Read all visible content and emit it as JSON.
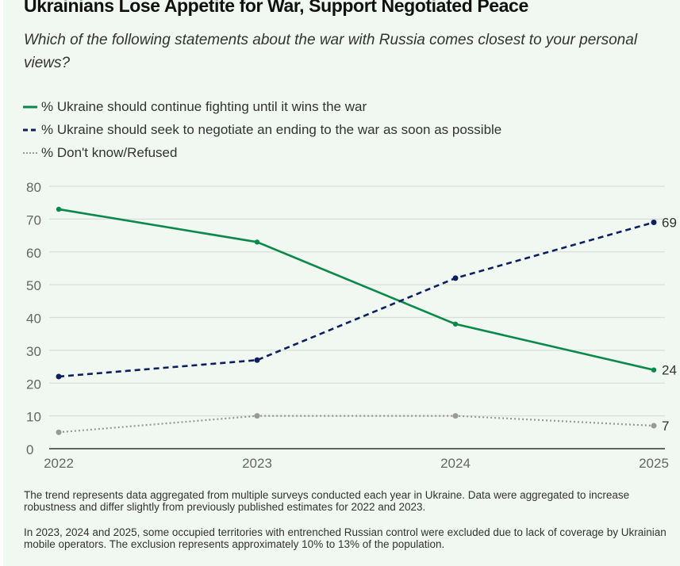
{
  "title": "Ukrainians Lose Appetite for War, Support Negotiated Peace",
  "subtitle": "Which of the following statements about the war with Russia comes closest to your personal views?",
  "colors": {
    "background": "#f1f7f1",
    "fight": "#0a8a4a",
    "negotiate": "#0c2060",
    "dontknow": "#999999",
    "grid": "#d9ded9",
    "axis": "#333333"
  },
  "notes": [
    "The trend represents data aggregated from multiple surveys conducted each year in Ukraine. Data were aggregated to increase robustness and differ slightly from previously published estimates for 2022 and 2023.",
    "In 2023, 2024 and 2025, some occupied territories with entrenched Russian control were excluded due to lack of coverage by Ukrainian mobile operators. The exclusion represents approximately 10% to 13% of the population."
  ],
  "chart_data": {
    "type": "line",
    "title": "Ukrainians Lose Appetite for War, Support Negotiated Peace",
    "xlabel": "",
    "ylabel": "",
    "x": [
      "2022",
      "2023",
      "2024",
      "2025"
    ],
    "ylim": [
      0,
      80
    ],
    "yticks": [
      0,
      10,
      20,
      30,
      40,
      50,
      60,
      70,
      80
    ],
    "grid": true,
    "legend_position": "top-left",
    "series": [
      {
        "name": "% Ukraine should continue fighting until it wins the war",
        "style": "solid",
        "values": [
          73,
          63,
          38,
          24
        ],
        "end_label": "24"
      },
      {
        "name": "% Ukraine should seek to negotiate an ending to the war as soon as possible",
        "style": "dashed",
        "values": [
          22,
          27,
          52,
          69
        ],
        "end_label": "69"
      },
      {
        "name": "% Don't know/Refused",
        "style": "dotted",
        "values": [
          5,
          10,
          10,
          7
        ],
        "end_label": "7"
      }
    ]
  }
}
